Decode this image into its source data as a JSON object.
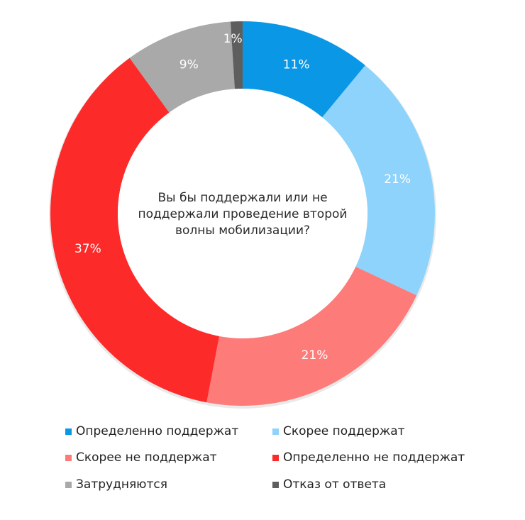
{
  "chart_data": {
    "type": "pie",
    "subtype": "donut",
    "title": "Вы бы поддержали или не поддержали проведение второй волны мобилизации?",
    "categories": [
      "Определенно поддержат",
      "Скорее поддержат",
      "Скорее не поддержат",
      "Определенно не поддержат",
      "Затрудняются",
      "Отказ от ответа"
    ],
    "values": [
      11,
      21,
      21,
      37,
      9,
      1
    ],
    "labels": [
      "11%",
      "21%",
      "21%",
      "37%",
      "9%",
      "1%"
    ],
    "colors": [
      "#0a98e6",
      "#8ed3fb",
      "#fd7b79",
      "#fd2a2a",
      "#a9a9a9",
      "#5e5e5e"
    ],
    "start_angle_deg": 0,
    "direction": "clockwise",
    "legend_position": "bottom"
  },
  "center_text": [
    "Вы бы поддержали или не",
    "поддержали проведение второй",
    "волны мобилизации?"
  ],
  "legend": [
    {
      "label": "Определенно поддержат",
      "color": "#0a98e6"
    },
    {
      "label": "Скорее поддержат",
      "color": "#8ed3fb"
    },
    {
      "label": "Скорее не поддержат",
      "color": "#fd7b79"
    },
    {
      "label": "Определенно не поддержат",
      "color": "#fd2a2a"
    },
    {
      "label": "Затрудняются",
      "color": "#a9a9a9"
    },
    {
      "label": "Отказ от ответа",
      "color": "#5e5e5e"
    }
  ]
}
